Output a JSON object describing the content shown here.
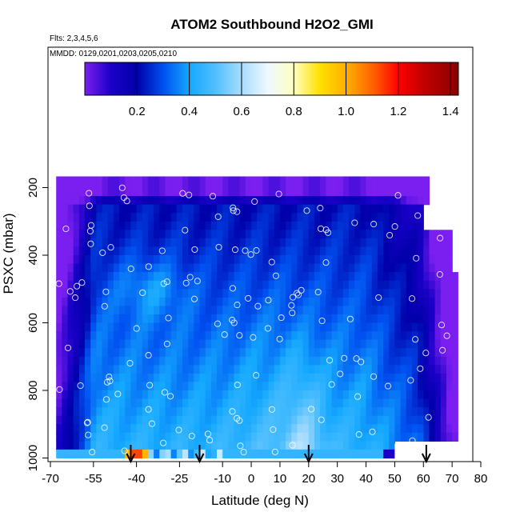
{
  "chart_data": {
    "type": "heatmap",
    "title": "ATOM2 Southbound H2O2_GMI",
    "subtitle_flights": "Flts: 2,3,4,5,6",
    "subtitle_dates": "MMDD: 0129,0201,0203,0205,0210",
    "xlabel": "Latitude (deg N)",
    "ylabel": "PSXC (mbar)",
    "xlim": [
      -70,
      80
    ],
    "ylim": [
      1000,
      0
    ],
    "x_ticks": [
      -70,
      -55,
      -40,
      -25,
      -10,
      0,
      10,
      20,
      30,
      40,
      50,
      60,
      70,
      80
    ],
    "y_ticks": [
      200,
      400,
      600,
      800,
      1000
    ],
    "colorbar": {
      "range": [
        0,
        1.43
      ],
      "ticks": [
        0.2,
        0.4,
        0.6,
        0.8,
        1.0,
        1.2,
        1.4
      ],
      "tick_labels": [
        "0.2",
        "0.4",
        "0.6",
        "0.8",
        "1.0",
        "1.2",
        "1.4"
      ],
      "stops": [
        {
          "v": 0.0,
          "color": "#7a1fef"
        },
        {
          "v": 0.1,
          "color": "#1b00c8"
        },
        {
          "v": 0.2,
          "color": "#0000aa"
        },
        {
          "v": 0.3,
          "color": "#0050f0"
        },
        {
          "v": 0.4,
          "color": "#14a8ff"
        },
        {
          "v": 0.5,
          "color": "#50bfff"
        },
        {
          "v": 0.6,
          "color": "#a8dcff"
        },
        {
          "v": 0.7,
          "color": "#eef8ff"
        },
        {
          "v": 0.8,
          "color": "#ffffc0"
        },
        {
          "v": 0.9,
          "color": "#ffe000"
        },
        {
          "v": 1.0,
          "color": "#ffb000"
        },
        {
          "v": 1.1,
          "color": "#ff6400"
        },
        {
          "v": 1.2,
          "color": "#ff0000"
        },
        {
          "v": 1.3,
          "color": "#c00000"
        },
        {
          "v": 1.43,
          "color": "#8a0000"
        }
      ]
    },
    "arrow_latitudes": [
      -42,
      -18,
      20,
      61
    ],
    "grid": false
  }
}
